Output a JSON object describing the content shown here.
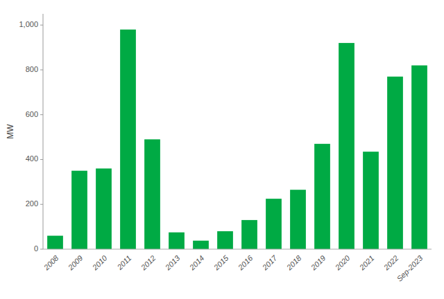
{
  "chart_data": {
    "type": "bar",
    "categories": [
      "2008",
      "2009",
      "2010",
      "2011",
      "2012",
      "2013",
      "2014",
      "2015",
      "2016",
      "2017",
      "2018",
      "2019",
      "2020",
      "2021",
      "2022",
      "Sep-2023"
    ],
    "values": [
      60,
      350,
      360,
      980,
      490,
      75,
      38,
      80,
      130,
      225,
      265,
      470,
      920,
      435,
      770,
      820
    ],
    "color": "#00aa44",
    "ylabel": "MW",
    "ylim": [
      0,
      1050
    ],
    "yticks": [
      0,
      200,
      400,
      600,
      800,
      {
        "value": 1000,
        "label": "1,000"
      }
    ],
    "grid": false
  }
}
